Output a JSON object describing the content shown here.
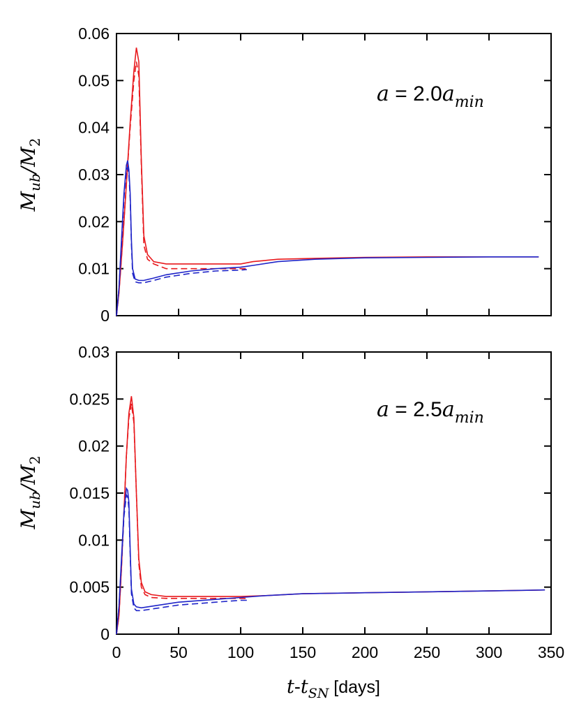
{
  "chart_data": [
    {
      "type": "line",
      "annotation": {
        "lhs": "a",
        "eq": " = ",
        "coef": "2.0",
        "var": "a",
        "sub": "min"
      },
      "ylabel": {
        "main": "M",
        "sub": "ub",
        "slash": "/",
        "den": "M",
        "den_sub": "2"
      },
      "xlim": [
        0,
        350
      ],
      "ylim": [
        0,
        0.06
      ],
      "xticks": [
        "0",
        "50",
        "100",
        "150",
        "200",
        "250",
        "300",
        "350"
      ],
      "yticks": [
        "0",
        "0.01",
        "0.02",
        "0.03",
        "0.04",
        "0.05",
        "0.06"
      ],
      "xtick_values": [
        0,
        50,
        100,
        150,
        200,
        250,
        300,
        350
      ],
      "ytick_values": [
        0,
        0.01,
        0.02,
        0.03,
        0.04,
        0.05,
        0.06
      ],
      "series": [
        {
          "color": "#e8191d",
          "dash": "solid",
          "x": [
            0,
            2,
            5,
            8,
            11,
            14,
            16,
            18,
            20,
            22,
            25,
            30,
            40,
            60,
            80,
            100,
            110,
            130,
            160,
            200,
            250,
            300,
            340
          ],
          "y": [
            0,
            0.005,
            0.016,
            0.028,
            0.041,
            0.052,
            0.057,
            0.054,
            0.033,
            0.017,
            0.013,
            0.0115,
            0.011,
            0.011,
            0.011,
            0.011,
            0.0115,
            0.012,
            0.0122,
            0.0124,
            0.0125,
            0.0125,
            0.0125
          ]
        },
        {
          "color": "#e8191d",
          "dash": "dashed",
          "x": [
            0,
            2,
            5,
            8,
            11,
            14,
            16,
            18,
            20,
            22,
            25,
            30,
            40,
            60,
            80,
            100,
            105
          ],
          "y": [
            0,
            0.005,
            0.016,
            0.028,
            0.04,
            0.05,
            0.054,
            0.051,
            0.032,
            0.015,
            0.012,
            0.011,
            0.01,
            0.01,
            0.01,
            0.01,
            0.01
          ]
        },
        {
          "color": "#1f24c8",
          "dash": "solid",
          "x": [
            0,
            2,
            4,
            6,
            8,
            9,
            10,
            11,
            12,
            13,
            15,
            18,
            22,
            30,
            40,
            60,
            80,
            100,
            110,
            130,
            160,
            200,
            250,
            300,
            340
          ],
          "y": [
            0,
            0.006,
            0.016,
            0.026,
            0.032,
            0.033,
            0.031,
            0.026,
            0.016,
            0.01,
            0.0078,
            0.0075,
            0.0075,
            0.008,
            0.0087,
            0.0095,
            0.01,
            0.0103,
            0.0107,
            0.0115,
            0.012,
            0.0123,
            0.0124,
            0.0125,
            0.0125
          ]
        },
        {
          "color": "#1f24c8",
          "dash": "dashed",
          "x": [
            0,
            2,
            4,
            6,
            8,
            9,
            10,
            11,
            12,
            13,
            15,
            18,
            22,
            30,
            40,
            60,
            80,
            100,
            105
          ],
          "y": [
            0,
            0.006,
            0.015,
            0.025,
            0.031,
            0.0315,
            0.03,
            0.025,
            0.015,
            0.009,
            0.0072,
            0.007,
            0.007,
            0.0075,
            0.0082,
            0.009,
            0.0095,
            0.0097,
            0.0098
          ]
        }
      ]
    },
    {
      "type": "line",
      "annotation": {
        "lhs": "a",
        "eq": " = ",
        "coef": "2.5",
        "var": "a",
        "sub": "min"
      },
      "ylabel": {
        "main": "M",
        "sub": "ub",
        "slash": "/",
        "den": "M",
        "den_sub": "2"
      },
      "xlabel": {
        "t": "t",
        "dash": "-",
        "t2": "t",
        "sub": "SN",
        "unit": " [days]"
      },
      "xlim": [
        0,
        350
      ],
      "ylim": [
        0,
        0.03
      ],
      "xticks": [
        "0",
        "50",
        "100",
        "150",
        "200",
        "250",
        "300",
        "350"
      ],
      "yticks": [
        "0",
        "0.005",
        "0.01",
        "0.015",
        "0.02",
        "0.025",
        "0.03"
      ],
      "xtick_values": [
        0,
        50,
        100,
        150,
        200,
        250,
        300,
        350
      ],
      "ytick_values": [
        0,
        0.005,
        0.01,
        0.015,
        0.02,
        0.025,
        0.03
      ],
      "series": [
        {
          "color": "#e8191d",
          "dash": "solid",
          "x": [
            0,
            2,
            4,
            6,
            8,
            10,
            12,
            14,
            16,
            18,
            20,
            23,
            28,
            40,
            60,
            80,
            100,
            120,
            150,
            200,
            250,
            300,
            345
          ],
          "y": [
            0,
            0.002,
            0.007,
            0.013,
            0.019,
            0.0235,
            0.0253,
            0.023,
            0.015,
            0.008,
            0.0055,
            0.0045,
            0.0042,
            0.004,
            0.004,
            0.004,
            0.004,
            0.0041,
            0.0043,
            0.0044,
            0.0045,
            0.0046,
            0.0047
          ]
        },
        {
          "color": "#e8191d",
          "dash": "dashed",
          "x": [
            0,
            2,
            4,
            6,
            8,
            10,
            12,
            14,
            16,
            18,
            20,
            23,
            28,
            40,
            60,
            80,
            100,
            105
          ],
          "y": [
            0,
            0.002,
            0.007,
            0.013,
            0.019,
            0.023,
            0.0245,
            0.0225,
            0.015,
            0.0075,
            0.005,
            0.0042,
            0.0039,
            0.0038,
            0.0038,
            0.0038,
            0.0038,
            0.0038
          ]
        },
        {
          "color": "#1f24c8",
          "dash": "solid",
          "x": [
            0,
            2,
            4,
            6,
            8,
            9,
            10,
            11,
            12,
            14,
            16,
            20,
            30,
            50,
            80,
            100,
            120,
            150,
            200,
            250,
            300,
            345
          ],
          "y": [
            0,
            0.003,
            0.008,
            0.013,
            0.0155,
            0.0153,
            0.014,
            0.009,
            0.0048,
            0.0032,
            0.0029,
            0.0028,
            0.003,
            0.0034,
            0.0037,
            0.0039,
            0.0041,
            0.0043,
            0.0044,
            0.0045,
            0.0046,
            0.0047
          ]
        },
        {
          "color": "#1f24c8",
          "dash": "dashed",
          "x": [
            0,
            2,
            4,
            6,
            8,
            9,
            10,
            11,
            12,
            14,
            16,
            20,
            30,
            50,
            80,
            100,
            105
          ],
          "y": [
            0,
            0.003,
            0.0075,
            0.0125,
            0.0148,
            0.0146,
            0.0133,
            0.0085,
            0.0043,
            0.0028,
            0.0025,
            0.0025,
            0.0027,
            0.0031,
            0.0034,
            0.0036,
            0.0036
          ]
        }
      ]
    }
  ]
}
